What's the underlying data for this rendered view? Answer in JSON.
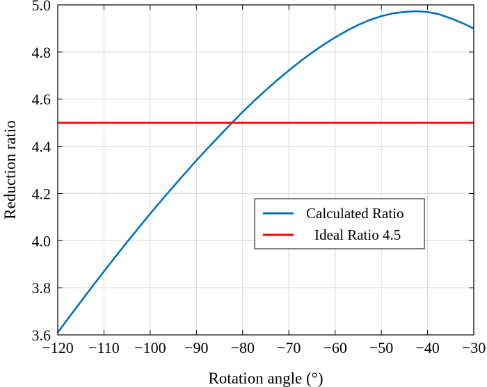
{
  "chart_data": {
    "type": "line",
    "title": "",
    "xlabel": "Rotation angle (°)",
    "ylabel": "Reduction ratio",
    "xlim": [
      -120,
      -30
    ],
    "ylim": [
      3.6,
      5.0
    ],
    "grid": true,
    "x_ticks": [
      -120,
      -110,
      -100,
      -90,
      -80,
      -70,
      -60,
      -50,
      -40,
      -30
    ],
    "x_tick_labels": [
      "−120",
      "−110",
      "−100",
      "−90",
      "−80",
      "−70",
      "−60",
      "−50",
      "−40",
      "−30"
    ],
    "y_ticks": [
      3.6,
      3.8,
      4.0,
      4.2,
      4.4,
      4.6,
      4.8,
      5.0
    ],
    "y_tick_labels": [
      "3.6",
      "3.8",
      "4.0",
      "4.2",
      "4.4",
      "4.6",
      "4.8",
      "5.0"
    ],
    "legend_position": "center-right",
    "series": [
      {
        "name": "Calculated Ratio",
        "color": "#0072BD",
        "x": [
          -120,
          -117.5,
          -115,
          -112.5,
          -110,
          -107.5,
          -105,
          -102.5,
          -100,
          -97.5,
          -95,
          -92.5,
          -90,
          -87.5,
          -85,
          -82.5,
          -80,
          -77.5,
          -75,
          -72.5,
          -70,
          -67.5,
          -65,
          -62.5,
          -60,
          -57.5,
          -55,
          -52.5,
          -50,
          -47.5,
          -45,
          -42.5,
          -40,
          -37.5,
          -35,
          -32.5,
          -30
        ],
        "y": [
          3.61,
          3.676,
          3.741,
          3.806,
          3.869,
          3.932,
          3.994,
          4.054,
          4.114,
          4.172,
          4.229,
          4.285,
          4.34,
          4.393,
          4.445,
          4.496,
          4.546,
          4.593,
          4.638,
          4.681,
          4.722,
          4.761,
          4.797,
          4.831,
          4.862,
          4.89,
          4.915,
          4.936,
          4.952,
          4.964,
          4.97,
          4.973,
          4.97,
          4.96,
          4.943,
          4.923,
          4.9
        ]
      },
      {
        "name": "Ideal Ratio 4.5",
        "color": "#FF0000",
        "x": [
          -120,
          -30
        ],
        "y": [
          4.5,
          4.5
        ]
      }
    ]
  }
}
